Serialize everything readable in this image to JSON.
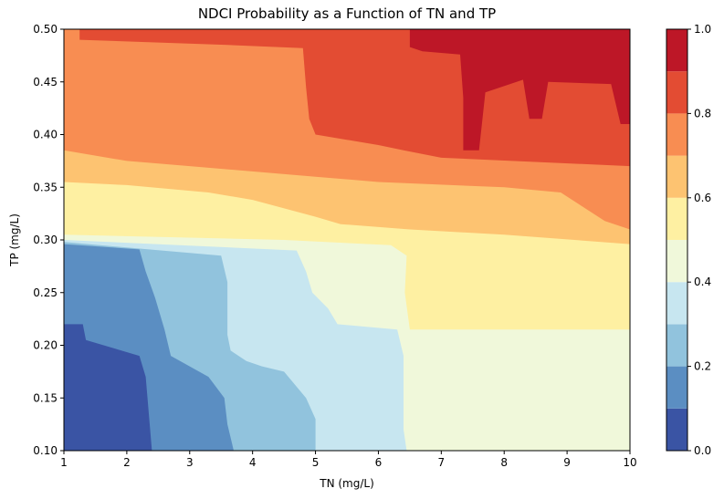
{
  "chart_data": {
    "type": "heatmap",
    "subtype": "filled-contour",
    "title": "NDCI Probability as a Function of TN and TP",
    "xlabel": "TN (mg/L)",
    "ylabel": "TP (mg/L)",
    "xlim": [
      1,
      10
    ],
    "ylim": [
      0.1,
      0.5
    ],
    "xticks": [
      "1",
      "2",
      "3",
      "4",
      "5",
      "6",
      "7",
      "8",
      "9",
      "10"
    ],
    "yticks": [
      "0.10",
      "0.15",
      "0.20",
      "0.25",
      "0.30",
      "0.35",
      "0.40",
      "0.45",
      "0.50"
    ],
    "colorbar": {
      "ticks": [
        "0.0",
        "0.2",
        "0.4",
        "0.6",
        "0.8",
        "1.0"
      ],
      "levels": [
        0.0,
        0.1,
        0.2,
        0.3,
        0.4,
        0.5,
        0.6,
        0.7,
        0.8,
        0.9,
        1.0
      ],
      "colors": [
        "#3a54a4",
        "#5b8ec2",
        "#91c3dd",
        "#c7e6f0",
        "#f0f8da",
        "#fef0a2",
        "#fdc371",
        "#f88d52",
        "#e34c33",
        "#bd1727"
      ]
    },
    "regions": [
      {
        "level": 1,
        "name": "0.1-0.2",
        "poly": [
          [
            1,
            0.1
          ],
          [
            10,
            0.1
          ],
          [
            10,
            0.5
          ],
          [
            1,
            0.5
          ]
        ]
      },
      {
        "level": 2,
        "name": "0.2-0.3",
        "poly": [
          [
            2.4,
            0.1
          ],
          [
            10,
            0.1
          ],
          [
            10,
            0.5
          ],
          [
            1,
            0.5
          ],
          [
            1,
            0.22
          ],
          [
            1.3,
            0.22
          ],
          [
            1.35,
            0.205
          ],
          [
            2.2,
            0.19
          ],
          [
            2.3,
            0.17
          ]
        ]
      },
      {
        "level": 3,
        "name": "0.3-0.4",
        "poly": [
          [
            3.7,
            0.1
          ],
          [
            10,
            0.1
          ],
          [
            10,
            0.5
          ],
          [
            1,
            0.5
          ],
          [
            1,
            0.296
          ],
          [
            2.2,
            0.291
          ],
          [
            2.3,
            0.27
          ],
          [
            2.45,
            0.245
          ],
          [
            2.6,
            0.215
          ],
          [
            2.7,
            0.19
          ],
          [
            3.15,
            0.175
          ],
          [
            3.3,
            0.17
          ],
          [
            3.55,
            0.15
          ],
          [
            3.6,
            0.125
          ]
        ]
      },
      {
        "level": 4,
        "name": "0.4-0.5",
        "poly": [
          [
            5,
            0.1
          ],
          [
            10,
            0.1
          ],
          [
            10,
            0.5
          ],
          [
            1,
            0.5
          ],
          [
            1,
            0.298
          ],
          [
            3.5,
            0.285
          ],
          [
            3.6,
            0.26
          ],
          [
            3.6,
            0.21
          ],
          [
            3.65,
            0.195
          ],
          [
            3.9,
            0.185
          ],
          [
            4.15,
            0.18
          ],
          [
            4.5,
            0.175
          ],
          [
            4.85,
            0.15
          ],
          [
            5,
            0.13
          ]
        ]
      },
      {
        "level": 5,
        "name": "0.5-0.6",
        "poly": [
          [
            6.45,
            0.1
          ],
          [
            10,
            0.1
          ],
          [
            10,
            0.5
          ],
          [
            1,
            0.5
          ],
          [
            1,
            0.3
          ],
          [
            4.7,
            0.29
          ],
          [
            4.85,
            0.27
          ],
          [
            4.95,
            0.25
          ],
          [
            5.2,
            0.235
          ],
          [
            5.35,
            0.22
          ],
          [
            6.3,
            0.215
          ],
          [
            6.4,
            0.19
          ],
          [
            6.4,
            0.12
          ]
        ]
      },
      {
        "level": 6,
        "name": "0.6-0.7",
        "poly": [
          [
            6.5,
            0.215
          ],
          [
            10,
            0.215
          ],
          [
            10,
            0.5
          ],
          [
            1,
            0.5
          ],
          [
            1,
            0.305
          ],
          [
            4.5,
            0.3
          ],
          [
            6.2,
            0.295
          ],
          [
            6.45,
            0.285
          ],
          [
            6.42,
            0.25
          ]
        ]
      },
      {
        "level": 7,
        "name": "0.7-0.8",
        "poly": [
          [
            1,
            0.355
          ],
          [
            2.0,
            0.352
          ],
          [
            3.3,
            0.345
          ],
          [
            4.0,
            0.338
          ],
          [
            5.0,
            0.322
          ],
          [
            5.4,
            0.315
          ],
          [
            6.5,
            0.31
          ],
          [
            8.0,
            0.305
          ],
          [
            10,
            0.296
          ],
          [
            10,
            0.5
          ],
          [
            1,
            0.5
          ]
        ]
      },
      {
        "level": 8,
        "name": "0.8-0.9",
        "poly": [
          [
            1,
            0.385
          ],
          [
            2.0,
            0.375
          ],
          [
            3.0,
            0.37
          ],
          [
            5.0,
            0.36
          ],
          [
            6.0,
            0.355
          ],
          [
            8.0,
            0.35
          ],
          [
            8.9,
            0.345
          ],
          [
            9.6,
            0.318
          ],
          [
            10,
            0.31
          ],
          [
            10,
            0.5
          ],
          [
            1,
            0.5
          ]
        ]
      },
      {
        "level": 9,
        "name": "0.9-1.0",
        "poly": [
          [
            1.25,
            0.49
          ],
          [
            3.6,
            0.485
          ],
          [
            4.8,
            0.482
          ],
          [
            4.85,
            0.445
          ],
          [
            4.9,
            0.415
          ],
          [
            5.0,
            0.4
          ],
          [
            6.0,
            0.39
          ],
          [
            6.4,
            0.385
          ],
          [
            7.0,
            0.378
          ],
          [
            10,
            0.37
          ],
          [
            10,
            0.5
          ],
          [
            1.25,
            0.5
          ]
        ]
      },
      {
        "level": 10,
        "name": "0.9-1.0+",
        "poly": [
          [
            6.5,
            0.5
          ],
          [
            6.5,
            0.483
          ],
          [
            6.7,
            0.479
          ],
          [
            7.3,
            0.476
          ],
          [
            7.35,
            0.435
          ],
          [
            7.35,
            0.385
          ],
          [
            7.6,
            0.385
          ],
          [
            7.7,
            0.44
          ],
          [
            8.3,
            0.452
          ],
          [
            8.4,
            0.415
          ],
          [
            8.6,
            0.415
          ],
          [
            8.7,
            0.45
          ],
          [
            9.7,
            0.448
          ],
          [
            9.85,
            0.41
          ],
          [
            10,
            0.41
          ],
          [
            10,
            0.5
          ]
        ]
      }
    ]
  }
}
